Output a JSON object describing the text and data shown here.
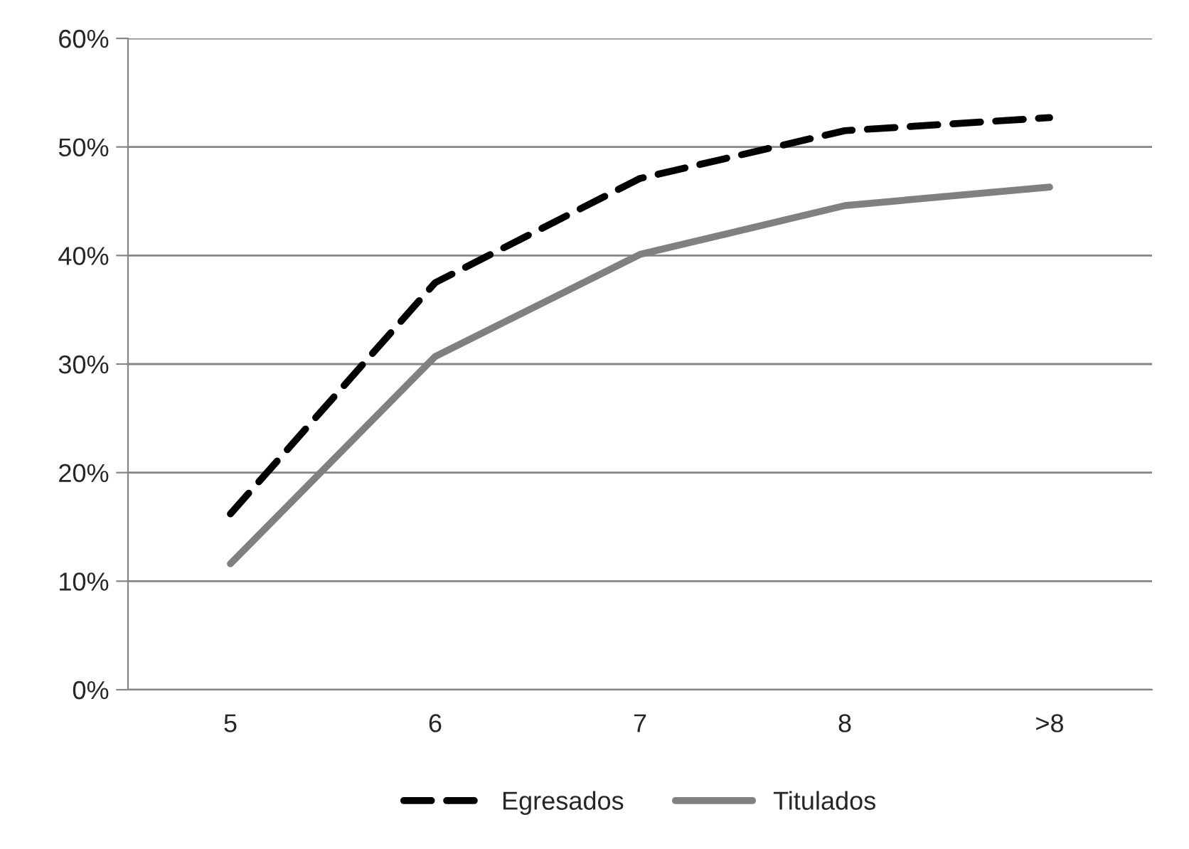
{
  "chart_data": {
    "type": "line",
    "categories": [
      "5",
      "6",
      "7",
      "8",
      ">8"
    ],
    "series": [
      {
        "name": "Egresados",
        "color": "#000000",
        "line_style": "dashed",
        "values": [
          16.2,
          37.5,
          47.1,
          51.5,
          52.7
        ]
      },
      {
        "name": "Titulados",
        "color": "#808080",
        "line_style": "solid",
        "values": [
          11.6,
          30.7,
          40.1,
          44.6,
          46.3
        ]
      }
    ],
    "ylim": [
      0,
      60
    ],
    "yticks": [
      {
        "value": 0,
        "label": "0%"
      },
      {
        "value": 10,
        "label": "10%"
      },
      {
        "value": 20,
        "label": "20%"
      },
      {
        "value": 30,
        "label": "30%"
      },
      {
        "value": 40,
        "label": "40%"
      },
      {
        "value": 50,
        "label": "50%"
      },
      {
        "value": 60,
        "label": "60%"
      }
    ],
    "grid": "y",
    "legend": "bottom",
    "marker": "none"
  }
}
